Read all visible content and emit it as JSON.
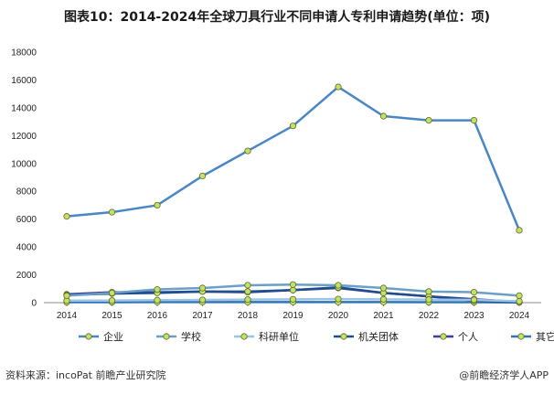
{
  "title": "图表10：2014-2024年全球刀具行业不同申请人专利申请趋势(单位：项)",
  "source": "资料来源：incoPat 前瞻产业研究院",
  "brand": "@前瞻经济学人APP",
  "chart_data": {
    "type": "line",
    "x": [
      "2014",
      "2015",
      "2016",
      "2017",
      "2018",
      "2019",
      "2020",
      "2021",
      "2022",
      "2023",
      "2024"
    ],
    "ylim": [
      0,
      18000
    ],
    "yticks": [
      0,
      2000,
      4000,
      6000,
      8000,
      10000,
      12000,
      14000,
      16000,
      18000
    ],
    "grid": false,
    "legend_position": "bottom",
    "series": [
      {
        "name": "企业",
        "color": "#4a86c5",
        "values": [
          6200,
          6500,
          7000,
          9100,
          10900,
          12700,
          15500,
          13400,
          13100,
          13100,
          5200
        ]
      },
      {
        "name": "学校",
        "color": "#6a9fc7",
        "values": [
          500,
          700,
          950,
          1050,
          1250,
          1300,
          1250,
          1050,
          800,
          750,
          500
        ]
      },
      {
        "name": "科研单位",
        "color": "#9dc3e6",
        "values": [
          150,
          150,
          180,
          200,
          220,
          240,
          260,
          240,
          220,
          200,
          100
        ]
      },
      {
        "name": "机关团体",
        "color": "#1f4e8c",
        "values": [
          550,
          650,
          700,
          800,
          800,
          900,
          1100,
          700,
          450,
          150,
          30
        ]
      },
      {
        "name": "个人",
        "color": "#3a3f9e",
        "values": [
          600,
          750,
          750,
          800,
          750,
          900,
          1050,
          700,
          450,
          250,
          50
        ]
      },
      {
        "name": "其它",
        "color": "#2e75b6",
        "values": [
          30,
          30,
          40,
          40,
          40,
          40,
          40,
          40,
          30,
          30,
          20
        ]
      }
    ]
  }
}
